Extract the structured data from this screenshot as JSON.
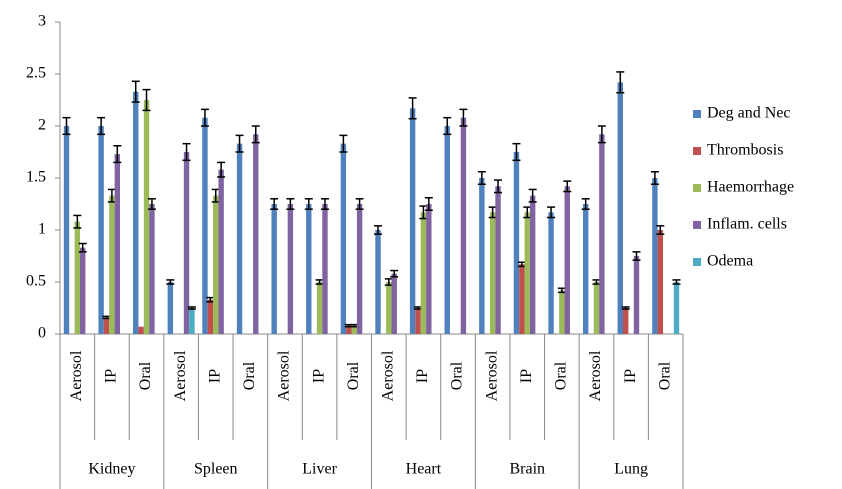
{
  "chart_data": {
    "type": "bar",
    "categories": [
      "Aerosol",
      "IP",
      "Oral",
      "Aerosol",
      "IP",
      "Oral",
      "Aerosol",
      "IP",
      "Oral",
      "Aerosol",
      "IP",
      "Oral",
      "Aerosol",
      "IP",
      "Oral",
      "Aerosol",
      "IP",
      "Oral"
    ],
    "category_groups": [
      "Kidney",
      "Spleen",
      "Liver",
      "Heart",
      "Brain",
      "Lung"
    ],
    "ylim": [
      0,
      3
    ],
    "yticks": [
      0,
      0.5,
      1,
      1.5,
      2,
      2.5,
      3
    ],
    "legend": "right",
    "series": [
      {
        "name": "Deg and Nec",
        "color": "#4f81bd",
        "values": [
          2.0,
          2.0,
          2.33,
          0.5,
          2.08,
          1.83,
          1.25,
          1.25,
          1.83,
          1.0,
          2.17,
          2.0,
          1.5,
          1.75,
          1.17,
          1.25,
          2.42,
          1.5
        ],
        "errors": [
          0.08,
          0.08,
          0.1,
          0.02,
          0.08,
          0.08,
          0.05,
          0.05,
          0.08,
          0.04,
          0.1,
          0.08,
          0.06,
          0.08,
          0.05,
          0.05,
          0.1,
          0.06
        ]
      },
      {
        "name": "Thrombosis",
        "color": "#c0504d",
        "values": [
          0,
          0.16,
          0.07,
          0,
          0.33,
          0,
          0,
          0,
          0.08,
          0,
          0.25,
          0,
          0,
          0.67,
          0,
          0,
          0.25,
          1.0
        ],
        "errors": [
          null,
          0.01,
          null,
          null,
          0.02,
          null,
          null,
          null,
          0.01,
          null,
          0.01,
          null,
          null,
          0.02,
          null,
          null,
          0.01,
          0.04
        ]
      },
      {
        "name": "Haemorrhage",
        "color": "#9bbb59",
        "values": [
          1.08,
          1.33,
          2.25,
          0,
          1.33,
          0,
          0,
          0.5,
          0.08,
          0.5,
          1.17,
          0,
          1.17,
          1.17,
          0.42,
          0.5,
          0,
          0
        ],
        "errors": [
          0.06,
          0.06,
          0.1,
          null,
          0.06,
          null,
          null,
          0.02,
          0.01,
          0.03,
          0.06,
          null,
          0.05,
          0.05,
          0.02,
          0.02,
          null,
          null
        ]
      },
      {
        "name": "Inflam. cells",
        "color": "#8064a2",
        "values": [
          0.83,
          1.73,
          1.25,
          1.75,
          1.58,
          1.92,
          1.25,
          1.25,
          1.25,
          0.58,
          1.25,
          2.08,
          1.42,
          1.33,
          1.42,
          1.92,
          0.75,
          0
        ],
        "errors": [
          0.04,
          0.08,
          0.05,
          0.08,
          0.07,
          0.08,
          0.05,
          0.05,
          0.05,
          0.03,
          0.06,
          0.08,
          0.06,
          0.06,
          0.05,
          0.08,
          0.04,
          null
        ]
      },
      {
        "name": "Odema",
        "color": "#4bacc6",
        "values": [
          0,
          0,
          0,
          0.25,
          0,
          0,
          0,
          0,
          0,
          0,
          0,
          0,
          0,
          0,
          0,
          0,
          0,
          0.5
        ],
        "errors": [
          null,
          null,
          null,
          0.01,
          null,
          null,
          null,
          null,
          null,
          null,
          null,
          null,
          null,
          null,
          null,
          null,
          null,
          0.02
        ]
      }
    ]
  }
}
